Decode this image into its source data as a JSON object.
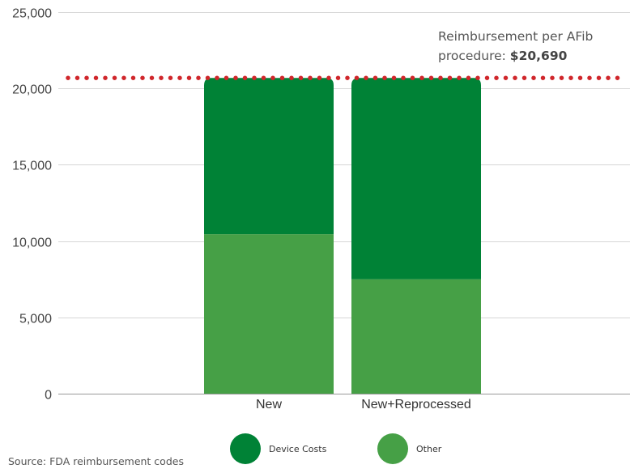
{
  "chart_data": {
    "type": "bar",
    "stacked": true,
    "categories": [
      "New",
      "New+Reprocessed"
    ],
    "series": [
      {
        "name": "Other",
        "color": "#46a046",
        "values": [
          10450,
          7500
        ]
      },
      {
        "name": "Device Costs",
        "color": "#008236",
        "values": [
          10240,
          13190
        ]
      }
    ],
    "ylim": [
      0,
      25000
    ],
    "yticks": [
      0,
      5000,
      10000,
      15000,
      20000,
      25000
    ],
    "ytick_labels": [
      "0",
      "5,000",
      "10,000",
      "15,000",
      "20,000",
      "25,000"
    ],
    "grid": true,
    "reference_line": {
      "value": 20690,
      "color": "#d0262b",
      "style": "dotted",
      "label_line1": "Reimbursement per AFib",
      "label_prefix": "procedure: ",
      "label_value": "$20,690"
    },
    "legend": {
      "position": "bottom",
      "entries": [
        {
          "label": "Device Costs",
          "color": "#008236"
        },
        {
          "label": "Other",
          "color": "#46a046"
        }
      ]
    }
  },
  "source_note": "Source: FDA reimbursement codes"
}
